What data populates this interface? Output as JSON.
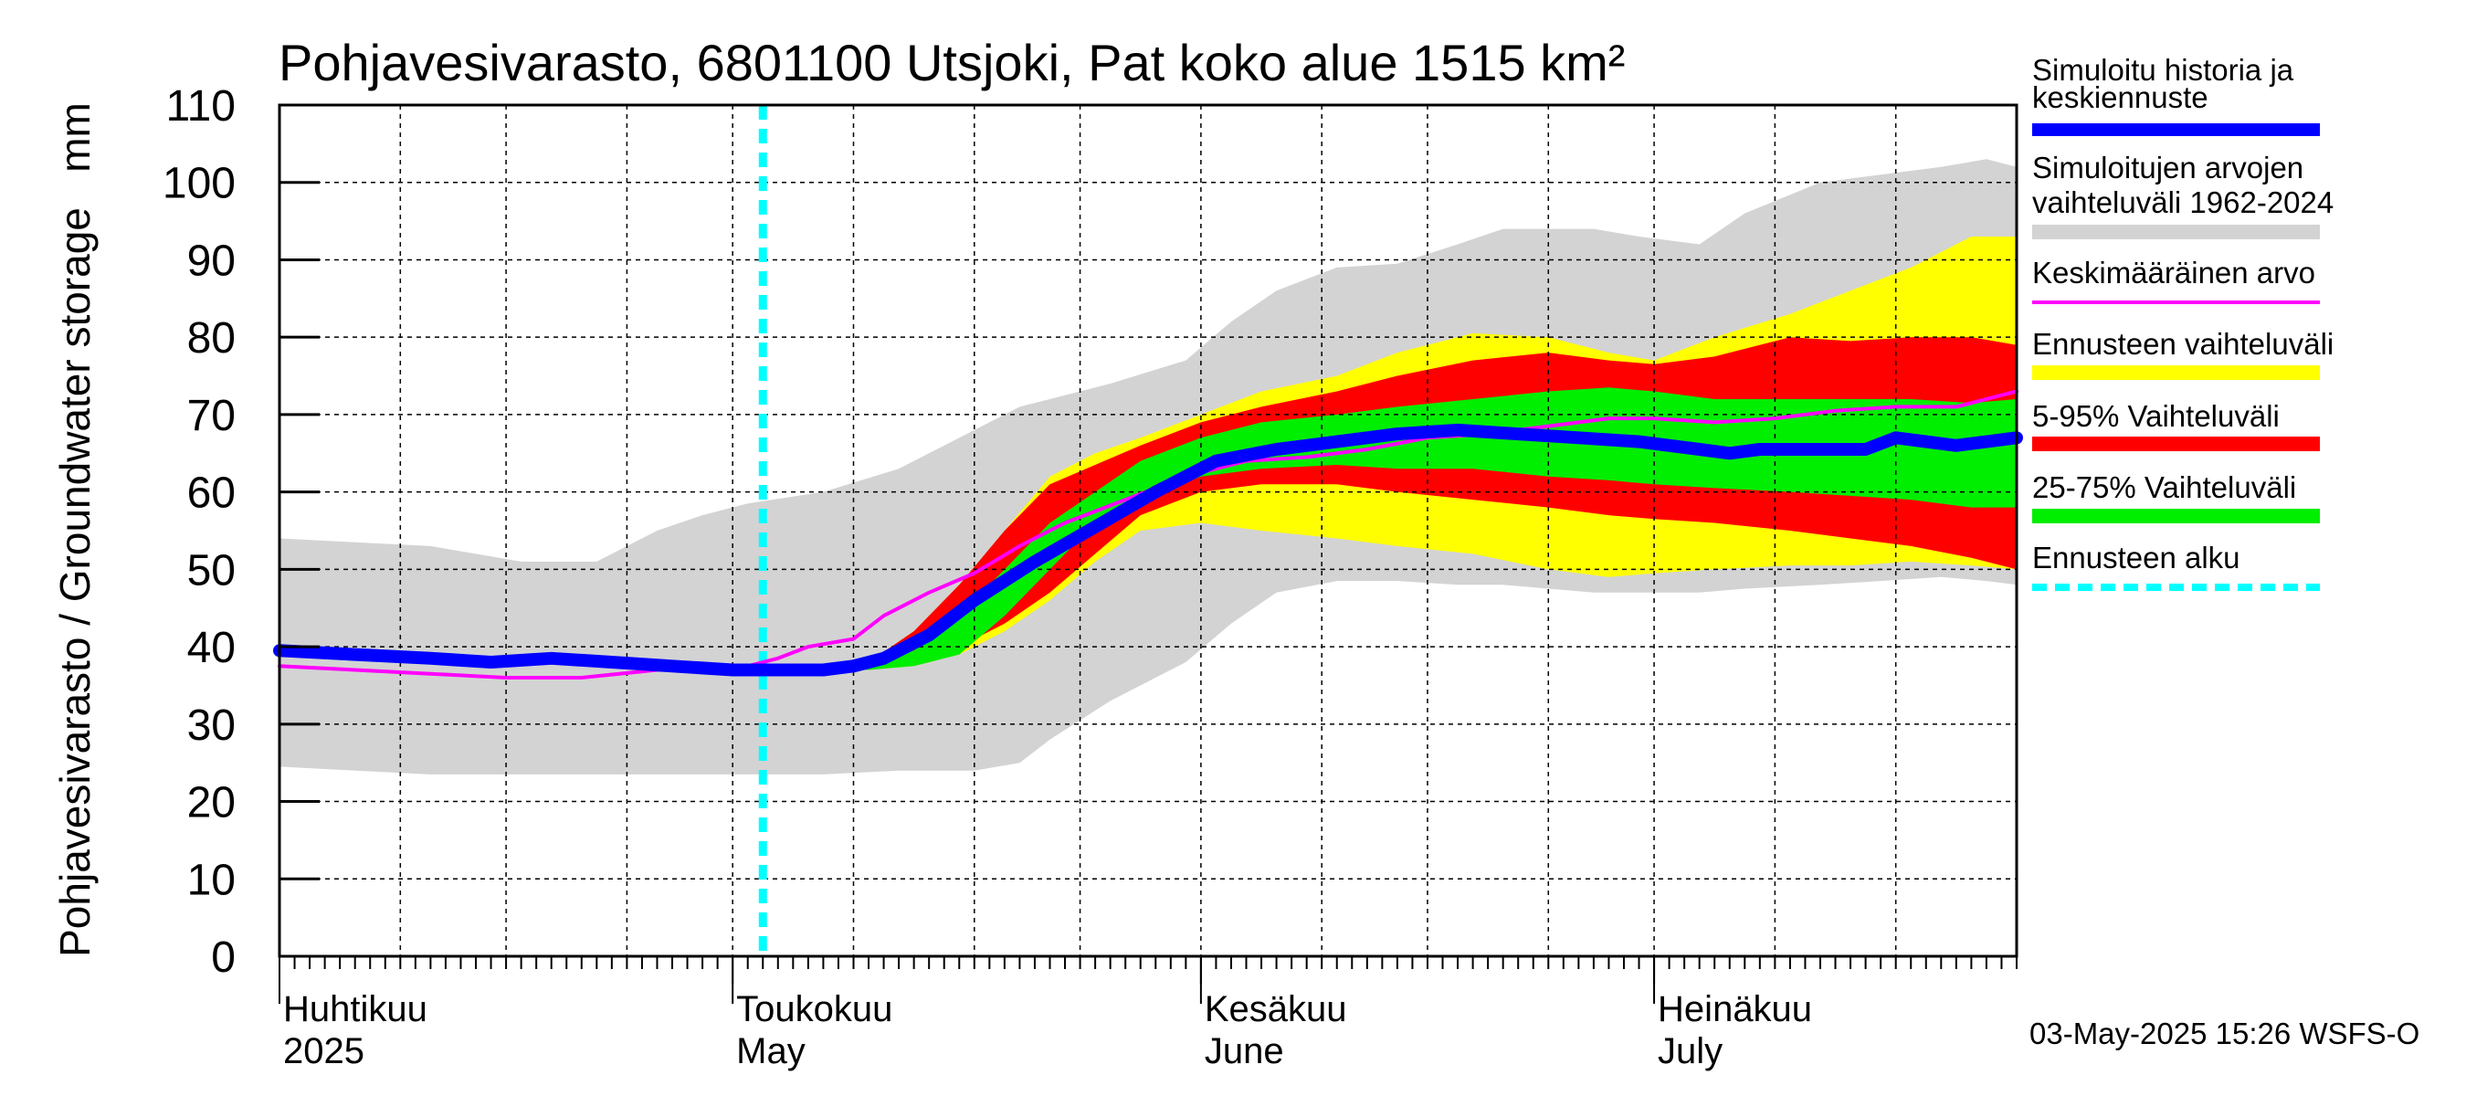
{
  "chart_data": {
    "type": "area",
    "title": "Pohjavesivarasto, 6801100 Utsjoki, Pat koko alue 1515 km²",
    "ylabel": "Pohjavesivarasto / Groundwater storage   mm",
    "ylim": [
      0,
      110
    ],
    "yticks": [
      0,
      10,
      20,
      30,
      40,
      50,
      60,
      70,
      80,
      90,
      100,
      110
    ],
    "x_range_days": [
      0,
      115
    ],
    "x_unit": "days since 1 April 2025",
    "forecast_start_day": 32,
    "months": [
      {
        "day": 0,
        "fi": "Huhtikuu",
        "en": "2025"
      },
      {
        "day": 30,
        "fi": "Toukokuu",
        "en": "May"
      },
      {
        "day": 61,
        "fi": "Kesäkuu",
        "en": "June"
      },
      {
        "day": 91,
        "fi": "Heinäkuu",
        "en": "July"
      }
    ],
    "series": [
      {
        "name": "Simuloitujen arvojen vaihteluväli 1962-2024",
        "kind": "band",
        "color": "#d3d3d3",
        "x": [
          0,
          5,
          10,
          16,
          21,
          25,
          28,
          31,
          36,
          41,
          46,
          49,
          51,
          55,
          60,
          63,
          66,
          70,
          74,
          78,
          81,
          84,
          87,
          90,
          94,
          97,
          102,
          106,
          110,
          113,
          115
        ],
        "upper": [
          54,
          53.5,
          53,
          51,
          51,
          55,
          57,
          58.5,
          60,
          63,
          68,
          71,
          72,
          74,
          77,
          82,
          86,
          89,
          89.5,
          92,
          94,
          94,
          94,
          93,
          92,
          96,
          100,
          101,
          102,
          103,
          102
        ],
        "lower": [
          24.5,
          24,
          23.5,
          23.5,
          23.5,
          23.5,
          23.5,
          23.5,
          23.5,
          24,
          24,
          25,
          28,
          33,
          38,
          43,
          47,
          48.5,
          48.5,
          48,
          48,
          47.5,
          47,
          47,
          47,
          47.5,
          48,
          48.5,
          49,
          48.5,
          48
        ]
      },
      {
        "name": "Ennusteen vaihteluväli",
        "kind": "band",
        "color": "#ffff00",
        "x": [
          32,
          36,
          39,
          42,
          45,
          48,
          51,
          54,
          57,
          61,
          65,
          70,
          74,
          79,
          84,
          88,
          91,
          95,
          100,
          104,
          108,
          112,
          115
        ],
        "upper": [
          37,
          37.5,
          38,
          42,
          48,
          55,
          62,
          65,
          67,
          70,
          73,
          75,
          78,
          80.5,
          80,
          78,
          77,
          80,
          83,
          86,
          89,
          93,
          93
        ],
        "lower": [
          37,
          37,
          37,
          37.5,
          39,
          42,
          46,
          51,
          55,
          56,
          55,
          54,
          53,
          52,
          50,
          49,
          49.5,
          50,
          50.5,
          50.5,
          51,
          50.5,
          50
        ]
      },
      {
        "name": "5-95% Vaihteluväli",
        "kind": "band",
        "color": "#ff0000",
        "x": [
          32,
          36,
          39,
          42,
          45,
          48,
          51,
          54,
          57,
          61,
          65,
          70,
          74,
          79,
          84,
          88,
          91,
          95,
          100,
          104,
          108,
          112,
          115
        ],
        "upper": [
          37,
          37.5,
          38,
          42,
          48,
          55,
          61,
          63.5,
          66,
          69,
          71,
          73,
          75,
          77,
          78,
          77,
          76.5,
          77.5,
          80,
          79.5,
          80,
          80,
          79
        ],
        "lower": [
          37,
          37,
          37,
          38,
          40,
          43,
          47,
          52,
          57,
          60,
          61,
          61,
          60,
          59,
          58,
          57,
          56.5,
          56,
          55,
          54,
          53,
          51.5,
          50
        ]
      },
      {
        "name": "25-75% Vaihteluväli",
        "kind": "band",
        "color": "#00ee00",
        "x": [
          32,
          36,
          39,
          42,
          45,
          48,
          51,
          54,
          57,
          61,
          65,
          70,
          74,
          79,
          84,
          88,
          91,
          95,
          100,
          104,
          108,
          112,
          115
        ],
        "upper": [
          37,
          37.2,
          37.5,
          39.5,
          44,
          50,
          56,
          60,
          64,
          67,
          69,
          70,
          71,
          72,
          73,
          73.5,
          73,
          72,
          72,
          72,
          72,
          71.5,
          72
        ],
        "lower": [
          37,
          37,
          37,
          37.5,
          39,
          44,
          50,
          56,
          59,
          62,
          63,
          63.5,
          63,
          63,
          62,
          61.5,
          61,
          60.5,
          60,
          59.5,
          59,
          58,
          58
        ]
      },
      {
        "name": "Keskimääräinen arvo",
        "kind": "line",
        "color": "#ff00ff",
        "x": [
          0,
          5,
          10,
          15,
          20,
          25,
          28,
          31,
          33,
          35,
          38,
          40,
          43,
          46,
          49,
          52,
          56,
          60,
          64,
          68,
          72,
          76,
          80,
          84,
          88,
          91,
          95,
          99,
          103,
          107,
          111,
          114,
          115
        ],
        "values": [
          37.5,
          37,
          36.5,
          36,
          36,
          37,
          37,
          37.5,
          38.5,
          40,
          41,
          44,
          47,
          49.5,
          53,
          56,
          59,
          62,
          64,
          64.5,
          65.5,
          67,
          67.5,
          68.5,
          69.5,
          69.5,
          69,
          69.5,
          70.5,
          71,
          71,
          72.5,
          73
        ]
      },
      {
        "name": "Simuloitu historia ja keskiennuste",
        "kind": "line",
        "color": "#0000ff",
        "x": [
          0,
          5,
          10,
          14,
          18,
          22,
          26,
          30,
          32,
          36,
          38,
          40,
          43,
          46,
          50,
          54,
          58,
          62,
          66,
          70,
          74,
          78,
          82,
          86,
          90,
          94,
          96,
          98,
          100,
          102,
          104,
          105,
          107,
          109,
          111,
          113,
          115
        ],
        "values": [
          39.5,
          39,
          38.5,
          38,
          38.5,
          38,
          37.5,
          37,
          37,
          37,
          37.5,
          38.5,
          41.5,
          46,
          51,
          55.5,
          60,
          64,
          65.5,
          66.5,
          67.5,
          68,
          67.5,
          67,
          66.5,
          65.5,
          65,
          65.5,
          65.5,
          65.5,
          65.5,
          65.5,
          67,
          66.5,
          66,
          66.5,
          67
        ]
      }
    ],
    "legend": [
      {
        "label": "Simuloitu historia ja keskiennuste",
        "color": "#0000ff",
        "style": "thick"
      },
      {
        "label": "Simuloitujen arvojen vaihteluväli 1962-2024",
        "color": "#d3d3d3",
        "style": "band"
      },
      {
        "label": "Keskimääräinen arvo",
        "color": "#ff00ff",
        "style": "thin"
      },
      {
        "label": "Ennusteen vaihteluväli",
        "color": "#ffff00",
        "style": "band"
      },
      {
        "label": "5-95% Vaihteluväli",
        "color": "#ff0000",
        "style": "band"
      },
      {
        "label": "25-75% Vaihteluväli",
        "color": "#00ee00",
        "style": "band"
      },
      {
        "label": "Ennusteen alku",
        "color": "#00ffff",
        "style": "dashed"
      }
    ],
    "legend_placement": "right",
    "grid": true,
    "forecast_line_color": "#00ffff",
    "footer": "03-May-2025 15:26 WSFS-O"
  }
}
